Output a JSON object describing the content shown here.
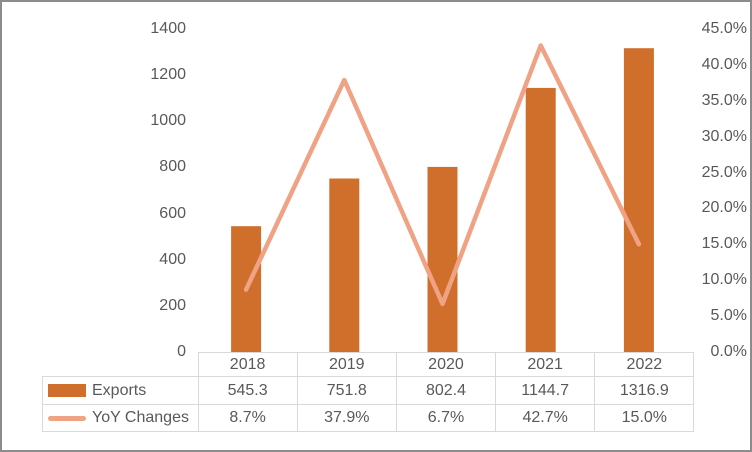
{
  "colors": {
    "bar": "#D06F2B",
    "line": "#F0A284",
    "text": "#595959",
    "table_border": "#D9D9D9",
    "frame_border": "#8C8C8C",
    "background": "#FFFFFF"
  },
  "chart_data": {
    "type": "combo",
    "title": "",
    "grid": false,
    "legend_position": "data-table-below",
    "categories": [
      "2018",
      "2019",
      "2020",
      "2021",
      "2022"
    ],
    "series": [
      {
        "name": "Exports",
        "type": "bar",
        "axis": "left",
        "values": [
          545.3,
          751.8,
          802.4,
          1144.7,
          1316.9
        ],
        "display": [
          "545.3",
          "751.8",
          "802.4",
          "1144.7",
          "1316.9"
        ]
      },
      {
        "name": "YoY Changes",
        "type": "line",
        "axis": "right",
        "values": [
          8.7,
          37.9,
          6.7,
          42.7,
          15.0
        ],
        "display": [
          "8.7%",
          "37.9%",
          "6.7%",
          "42.7%",
          "15.0%"
        ]
      }
    ],
    "left_axis": {
      "min": 0,
      "max": 1400,
      "step": 200,
      "ticks": [
        "1400",
        "1200",
        "1000",
        "800",
        "600",
        "400",
        "200",
        "0"
      ]
    },
    "right_axis": {
      "min": 0,
      "max": 45,
      "step": 5,
      "ticks": [
        "45.0%",
        "40.0%",
        "35.0%",
        "30.0%",
        "25.0%",
        "20.0%",
        "15.0%",
        "10.0%",
        "5.0%",
        "0.0%"
      ]
    }
  }
}
